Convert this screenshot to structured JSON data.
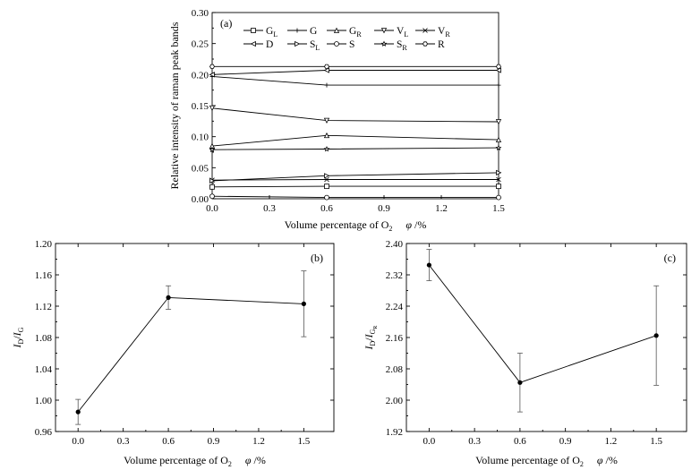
{
  "chart_data": [
    {
      "type": "line",
      "panel_label": "(a)",
      "xlabel": "Volume percentage of O2  φ /%",
      "ylabel": "Relative intensity of raman peak bands",
      "xlim": [
        0,
        1.5
      ],
      "ylim": [
        0,
        0.3
      ],
      "x_ticks": [
        "0.0",
        "0.3",
        "0.6",
        "0.9",
        "1.2",
        "1.5"
      ],
      "y_ticks": [
        "0.00",
        "0.05",
        "0.10",
        "0.15",
        "0.20",
        "0.25",
        "0.30"
      ],
      "x": [
        0,
        0.6,
        1.5
      ],
      "legend_placement": "top",
      "series": [
        {
          "name": "G_L",
          "marker": "square",
          "values": [
            0.019,
            0.02,
            0.02
          ]
        },
        {
          "name": "G",
          "marker": "plus",
          "values": [
            0.197,
            0.183,
            0.183
          ]
        },
        {
          "name": "G_R",
          "marker": "triangle-up",
          "values": [
            0.085,
            0.102,
            0.095
          ]
        },
        {
          "name": "V_L",
          "marker": "triangle-down",
          "values": [
            0.146,
            0.126,
            0.124
          ]
        },
        {
          "name": "V_R",
          "marker": "cross",
          "values": [
            0.03,
            0.031,
            0.031
          ]
        },
        {
          "name": "D",
          "marker": "triangle-left",
          "values": [
            0.2,
            0.207,
            0.207
          ]
        },
        {
          "name": "S_L",
          "marker": "triangle-right",
          "values": [
            0.029,
            0.037,
            0.042
          ]
        },
        {
          "name": "S",
          "marker": "circle",
          "values": [
            0.004,
            0.002,
            0.002
          ]
        },
        {
          "name": "S_R",
          "marker": "star",
          "values": [
            0.079,
            0.08,
            0.082
          ]
        },
        {
          "name": "R",
          "marker": "hexagon",
          "values": [
            0.213,
            0.213,
            0.213
          ]
        }
      ]
    },
    {
      "type": "line",
      "panel_label": "(b)",
      "xlabel": "Volume percentage of O2  φ /%",
      "ylabel": "ID/IG",
      "xlim": [
        -0.15,
        1.7
      ],
      "ylim": [
        0.96,
        1.2
      ],
      "x_ticks": [
        "0.0",
        "0.3",
        "0.6",
        "0.9",
        "1.2",
        "1.5"
      ],
      "y_ticks": [
        "0.96",
        "1.00",
        "1.04",
        "1.08",
        "1.12",
        "1.16",
        "1.20"
      ],
      "x": [
        0,
        0.6,
        1.5
      ],
      "values": [
        0.985,
        1.131,
        1.123
      ],
      "error": [
        0.016,
        0.015,
        0.042
      ]
    },
    {
      "type": "line",
      "panel_label": "(c)",
      "xlabel": "Volume percentage of O2  φ /%",
      "ylabel": "ID/IGR",
      "xlim": [
        -0.15,
        1.7
      ],
      "ylim": [
        1.92,
        2.4
      ],
      "x_ticks": [
        "0.0",
        "0.3",
        "0.6",
        "0.9",
        "1.2",
        "1.5"
      ],
      "y_ticks": [
        "1.92",
        "2.00",
        "2.08",
        "2.16",
        "2.24",
        "2.32",
        "2.40"
      ],
      "x": [
        0,
        0.6,
        1.5
      ],
      "values": [
        2.345,
        2.045,
        2.165
      ],
      "error": [
        0.04,
        0.075,
        0.127
      ]
    }
  ]
}
